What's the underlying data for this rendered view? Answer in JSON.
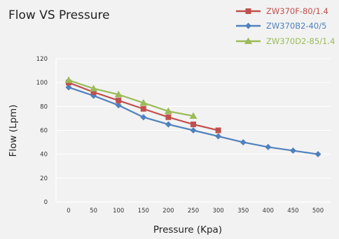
{
  "chart_data": {
    "type": "line",
    "title": "Flow VS Pressure",
    "xlabel": "Pressure (Kpa)",
    "ylabel": "Flow (Lpm)",
    "xlim": [
      0,
      500
    ],
    "ylim": [
      0,
      120
    ],
    "x_ticks": [
      0,
      50,
      100,
      150,
      200,
      250,
      300,
      350,
      400,
      450,
      500
    ],
    "y_ticks": [
      0,
      20,
      40,
      60,
      80,
      100,
      120
    ],
    "grid": true,
    "legend_position": "top-right",
    "series": [
      {
        "name": "ZW370F-80/1.4",
        "color": "#c0504d",
        "marker": "square",
        "x": [
          0,
          50,
          100,
          150,
          200,
          250,
          300
        ],
        "y": [
          100,
          92,
          85,
          78,
          71,
          65,
          60
        ]
      },
      {
        "name": "ZW370B2-40/5",
        "color": "#4f81bd",
        "marker": "diamond",
        "x": [
          0,
          50,
          100,
          150,
          200,
          250,
          300,
          350,
          400,
          450,
          500
        ],
        "y": [
          96,
          89,
          81,
          71,
          65,
          60,
          55,
          50,
          46,
          43,
          40
        ]
      },
      {
        "name": "ZW370D2-85/1.4",
        "color": "#9bbb59",
        "marker": "triangle",
        "x": [
          0,
          50,
          100,
          150,
          200,
          250
        ],
        "y": [
          102,
          95,
          90,
          83,
          76,
          72
        ]
      }
    ]
  }
}
